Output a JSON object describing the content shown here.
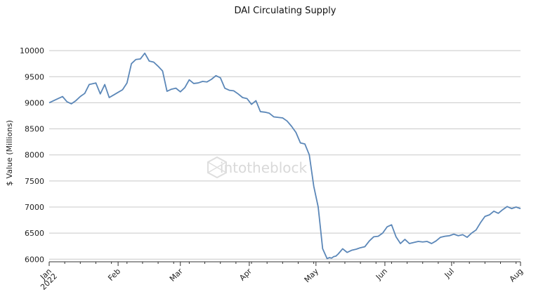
{
  "chart_data": {
    "type": "line",
    "title": "DAI Circulating Supply",
    "xlabel": "",
    "ylabel": "$ Value (Millions)",
    "watermark": "intotheblock",
    "ylim": [
      5950,
      10150
    ],
    "yticks": [
      6000,
      6500,
      7000,
      7500,
      8000,
      8500,
      9000,
      9500,
      10000
    ],
    "xlim": [
      "2022-01-01",
      "2022-08-01"
    ],
    "xticks": [
      {
        "date": "2022-01-01",
        "label": "Jan",
        "sublabel": "2022"
      },
      {
        "date": "2022-02-01",
        "label": "Feb",
        "sublabel": ""
      },
      {
        "date": "2022-03-01",
        "label": "Mar",
        "sublabel": ""
      },
      {
        "date": "2022-04-01",
        "label": "Apr",
        "sublabel": ""
      },
      {
        "date": "2022-05-01",
        "label": "May",
        "sublabel": ""
      },
      {
        "date": "2022-06-01",
        "label": "Jun",
        "sublabel": ""
      },
      {
        "date": "2022-07-01",
        "label": "Jul",
        "sublabel": ""
      },
      {
        "date": "2022-08-01",
        "label": "Aug",
        "sublabel": ""
      }
    ],
    "grid": "horizontal",
    "line_color": "#5b87b8",
    "series": [
      {
        "x": [
          "2022-01-01",
          "2022-01-04",
          "2022-01-07",
          "2022-01-09",
          "2022-01-11",
          "2022-01-13",
          "2022-01-15",
          "2022-01-17",
          "2022-01-19",
          "2022-01-22",
          "2022-01-24",
          "2022-01-26",
          "2022-01-28",
          "2022-01-30",
          "2022-02-01",
          "2022-02-03",
          "2022-02-05",
          "2022-02-07",
          "2022-02-09",
          "2022-02-11",
          "2022-02-13",
          "2022-02-15",
          "2022-02-17",
          "2022-02-19",
          "2022-02-21",
          "2022-02-23",
          "2022-02-25",
          "2022-02-27",
          "2022-03-01",
          "2022-03-03",
          "2022-03-05",
          "2022-03-07",
          "2022-03-09",
          "2022-03-11",
          "2022-03-13",
          "2022-03-15",
          "2022-03-17",
          "2022-03-19",
          "2022-03-21",
          "2022-03-23",
          "2022-03-25",
          "2022-03-27",
          "2022-03-29",
          "2022-03-31",
          "2022-04-02",
          "2022-04-04",
          "2022-04-06",
          "2022-04-08",
          "2022-04-10",
          "2022-04-12",
          "2022-04-14",
          "2022-04-16",
          "2022-04-18",
          "2022-04-20",
          "2022-04-22",
          "2022-04-24",
          "2022-04-26",
          "2022-04-28",
          "2022-04-30",
          "2022-05-02",
          "2022-05-04",
          "2022-05-06",
          "2022-05-07",
          "2022-05-08",
          "2022-05-09",
          "2022-05-10",
          "2022-05-11",
          "2022-05-13",
          "2022-05-15",
          "2022-05-17",
          "2022-05-19",
          "2022-05-21",
          "2022-05-23",
          "2022-05-25",
          "2022-05-27",
          "2022-05-29",
          "2022-05-31",
          "2022-06-02",
          "2022-06-04",
          "2022-06-06",
          "2022-06-08",
          "2022-06-10",
          "2022-06-12",
          "2022-06-14",
          "2022-06-16",
          "2022-06-18",
          "2022-06-20",
          "2022-06-22",
          "2022-06-24",
          "2022-06-26",
          "2022-06-28",
          "2022-06-30",
          "2022-07-02",
          "2022-07-04",
          "2022-07-06",
          "2022-07-08",
          "2022-07-10",
          "2022-07-12",
          "2022-07-14",
          "2022-07-16",
          "2022-07-18",
          "2022-07-20",
          "2022-07-22",
          "2022-07-24",
          "2022-07-26",
          "2022-07-28",
          "2022-07-30",
          "2022-08-01"
        ],
        "y": [
          9000,
          9060,
          9120,
          9020,
          8980,
          9040,
          9120,
          9180,
          9350,
          9380,
          9170,
          9350,
          9100,
          9150,
          9200,
          9250,
          9380,
          9750,
          9830,
          9840,
          9950,
          9800,
          9780,
          9700,
          9610,
          9220,
          9260,
          9280,
          9210,
          9290,
          9440,
          9370,
          9380,
          9410,
          9400,
          9450,
          9520,
          9480,
          9280,
          9240,
          9230,
          9170,
          9100,
          9080,
          8970,
          9040,
          8830,
          8820,
          8800,
          8730,
          8720,
          8710,
          8650,
          8550,
          8430,
          8230,
          8210,
          8000,
          7400,
          7000,
          6200,
          6010,
          6030,
          6020,
          6050,
          6060,
          6100,
          6200,
          6130,
          6170,
          6190,
          6220,
          6240,
          6350,
          6430,
          6440,
          6500,
          6620,
          6660,
          6430,
          6300,
          6380,
          6300,
          6320,
          6340,
          6330,
          6340,
          6300,
          6350,
          6420,
          6440,
          6450,
          6480,
          6450,
          6470,
          6420,
          6500,
          6560,
          6700,
          6820,
          6850,
          6920,
          6880,
          6950,
          7010,
          6970,
          7000,
          6970
        ]
      }
    ]
  }
}
